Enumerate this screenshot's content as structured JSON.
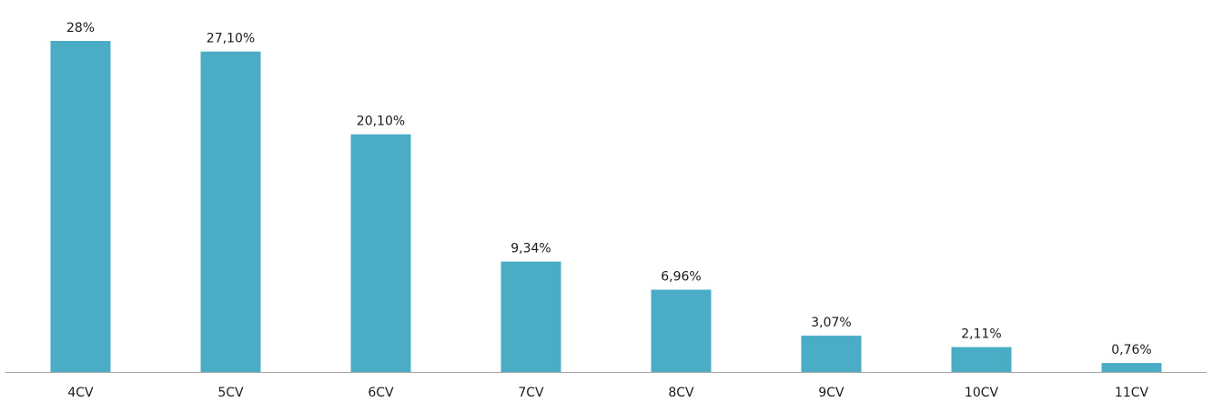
{
  "chart_data": {
    "type": "bar",
    "title": "",
    "xlabel": "",
    "ylabel": "",
    "categories": [
      "4CV",
      "5CV",
      "6CV",
      "7CV",
      "8CV",
      "9CV",
      "10CV",
      "11CV"
    ],
    "values": [
      28,
      27.1,
      20.1,
      9.34,
      6.96,
      3.07,
      2.11,
      0.76
    ],
    "data_labels": [
      "28%",
      "27,10%",
      "20,10%",
      "9,34%",
      "6,96%",
      "3,07%",
      "2,11%",
      "0,76%"
    ],
    "value_unit": "%",
    "ylim": [
      0,
      28
    ],
    "grid": false,
    "legend": "none",
    "colors": {
      "bar": "#4BACC6",
      "axis": "#A6A6A6",
      "text": "#1A1A1A"
    }
  }
}
